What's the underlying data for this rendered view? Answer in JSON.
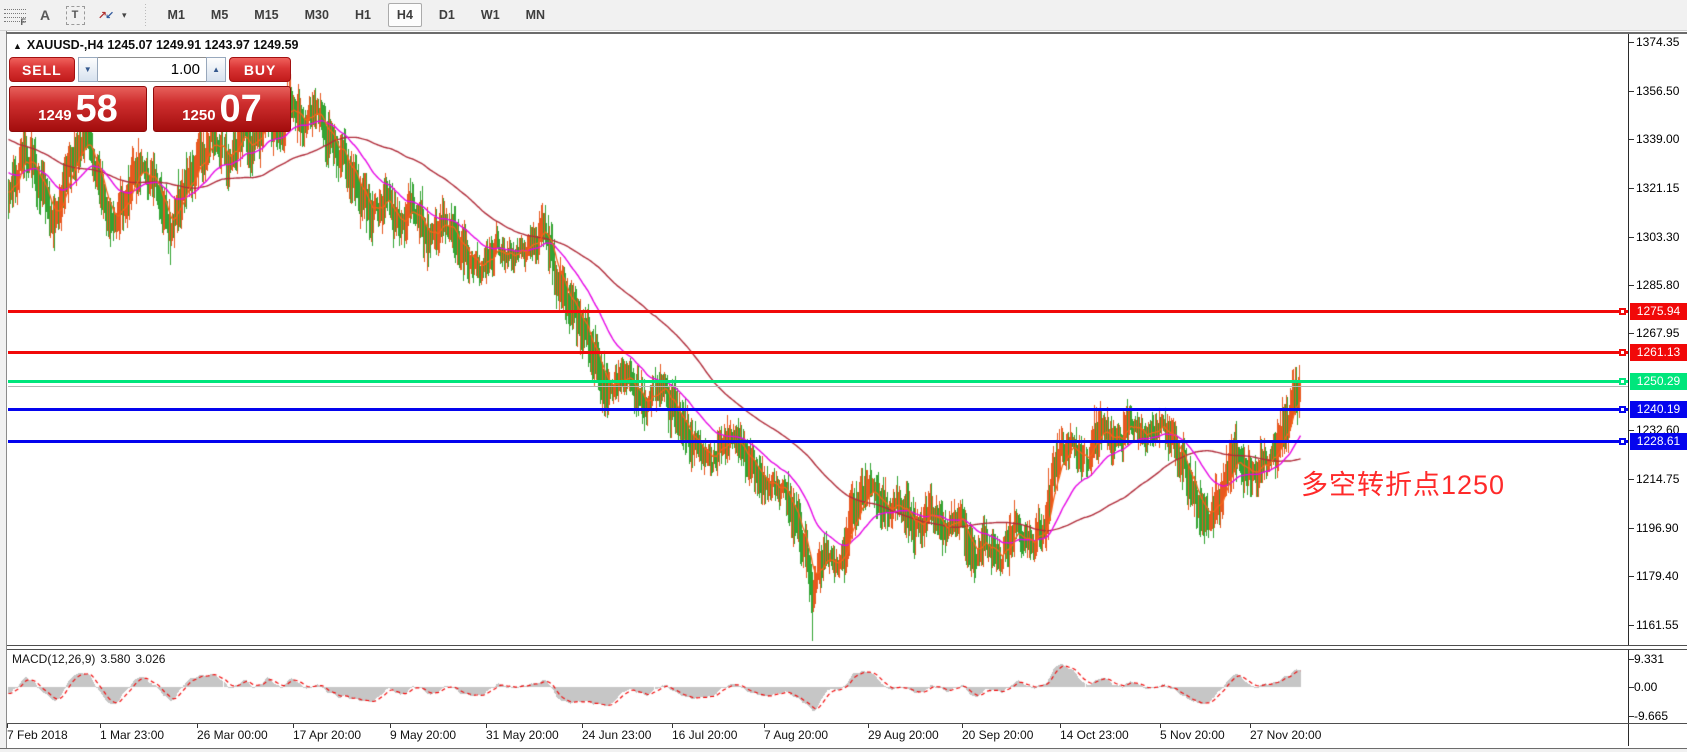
{
  "toolbar": {
    "icons": [
      {
        "name": "fibonacci-lines",
        "glyph": "F"
      },
      {
        "name": "text-label",
        "glyph": "A"
      },
      {
        "name": "text-box",
        "glyph": "T"
      },
      {
        "name": "arrow-up",
        "glyph": "↗"
      },
      {
        "name": "arrow-down",
        "glyph": "↙"
      },
      {
        "name": "dropdown",
        "glyph": "▾"
      }
    ],
    "timeframes": [
      {
        "label": "M1"
      },
      {
        "label": "M5"
      },
      {
        "label": "M15"
      },
      {
        "label": "M30"
      },
      {
        "label": "H1"
      },
      {
        "label": "H4"
      },
      {
        "label": "D1"
      },
      {
        "label": "W1"
      },
      {
        "label": "MN"
      }
    ],
    "active_timeframe": "H4"
  },
  "header": {
    "collapse_glyph": "▲",
    "symbol_line": "XAUUSD-,H4",
    "ohlc_values": "1245.07 1249.91 1243.97 1249.59"
  },
  "trade_panel": {
    "sell_label": "SELL",
    "buy_label": "BUY",
    "volume": "1.00",
    "spinner_down_glyph": "▼",
    "spinner_up_glyph": "▲",
    "sell_price_small": "1249",
    "sell_price_big": "58",
    "buy_price_small": "1250",
    "buy_price_big": "07"
  },
  "price_axis": {
    "ticks": [
      "1374.35",
      "1356.50",
      "1339.00",
      "1321.15",
      "1303.30",
      "1285.80",
      "1267.95",
      "1232.60",
      "1214.75",
      "1196.90",
      "1179.40",
      "1161.55"
    ]
  },
  "time_axis": {
    "labels": [
      "7 Feb 2018",
      "1 Mar 23:00",
      "26 Mar 00:00",
      "17 Apr 20:00",
      "9 May 20:00",
      "31 May 20:00",
      "24 Jun 23:00",
      "16 Jul 20:00",
      "7 Aug 20:00",
      "29 Aug 20:00",
      "20 Sep 20:00",
      "14 Oct 23:00",
      "5 Nov 20:00",
      "27 Nov 20:00"
    ]
  },
  "macd_panel": {
    "title": "MACD(12,26,9)",
    "main_value": "3.580",
    "signal_value": "3.026",
    "axis": [
      "9.331",
      "0.00",
      "-9.665"
    ]
  },
  "annotation": {
    "text": "多空转折点1250",
    "color": "#ff2a2a"
  },
  "chart_data": {
    "type": "candlestick",
    "symbol": "XAUUSD-",
    "timeframe": "H4",
    "ohlc_header": {
      "open": 1245.07,
      "high": 1249.91,
      "low": 1243.97,
      "close": 1249.59
    },
    "y_axis_range": [
      1155,
      1378
    ],
    "levels": [
      {
        "label": "1275.94",
        "price": 1275.94,
        "color": "#f10909",
        "style": "red"
      },
      {
        "label": "1261.13",
        "price": 1261.13,
        "color": "#f10909",
        "style": "red"
      },
      {
        "label": "1250.29",
        "price": 1250.29,
        "color": "#00e67c",
        "style": "green"
      },
      {
        "label": "1240.19",
        "price": 1240.19,
        "color": "#0404ee",
        "style": "blue"
      },
      {
        "label": "1228.61",
        "price": 1228.61,
        "color": "#0404ee",
        "style": "blue"
      }
    ],
    "current_price_line": 1249.59,
    "candle_colors": {
      "up": "#e8581f",
      "down": "#33a433"
    },
    "ma_lines": [
      {
        "name": "fast",
        "period": 13,
        "method": "ema",
        "color": "#f4661b"
      },
      {
        "name": "medium",
        "period": 60,
        "method": "ema",
        "color": "#e607e6"
      },
      {
        "name": "slow",
        "period": 160,
        "method": "sma",
        "color": "#b02c3a"
      }
    ],
    "macd": {
      "fast": 12,
      "slow": 26,
      "signal": 9,
      "histogram_color": "#c6c6c6",
      "signal_color": "#f20c0c"
    },
    "price_path": [
      [
        -0.17,
        1322
      ],
      [
        -0.12,
        1352
      ],
      [
        -0.06,
        1342
      ],
      [
        -0.02,
        1326
      ],
      [
        0.0,
        1318
      ],
      [
        0.013,
        1335
      ],
      [
        0.025,
        1322
      ],
      [
        0.036,
        1308
      ],
      [
        0.048,
        1330
      ],
      [
        0.06,
        1340
      ],
      [
        0.071,
        1322
      ],
      [
        0.08,
        1306
      ],
      [
        0.091,
        1318
      ],
      [
        0.102,
        1330
      ],
      [
        0.114,
        1322
      ],
      [
        0.125,
        1305
      ],
      [
        0.137,
        1322
      ],
      [
        0.149,
        1332
      ],
      [
        0.16,
        1340
      ],
      [
        0.17,
        1330
      ],
      [
        0.18,
        1342
      ],
      [
        0.189,
        1335
      ],
      [
        0.199,
        1348
      ],
      [
        0.209,
        1340
      ],
      [
        0.218,
        1353
      ],
      [
        0.228,
        1344
      ],
      [
        0.238,
        1350
      ],
      [
        0.249,
        1338
      ],
      [
        0.261,
        1330
      ],
      [
        0.271,
        1320
      ],
      [
        0.282,
        1310
      ],
      [
        0.292,
        1318
      ],
      [
        0.302,
        1306
      ],
      [
        0.313,
        1315
      ],
      [
        0.325,
        1302
      ],
      [
        0.338,
        1310
      ],
      [
        0.354,
        1296
      ],
      [
        0.365,
        1292
      ],
      [
        0.377,
        1300
      ],
      [
        0.39,
        1296
      ],
      [
        0.404,
        1300
      ],
      [
        0.416,
        1307
      ],
      [
        0.423,
        1288
      ],
      [
        0.431,
        1282
      ],
      [
        0.439,
        1275
      ],
      [
        0.447,
        1268
      ],
      [
        0.464,
        1246
      ],
      [
        0.478,
        1253
      ],
      [
        0.493,
        1242
      ],
      [
        0.505,
        1249
      ],
      [
        0.514,
        1241
      ],
      [
        0.528,
        1228
      ],
      [
        0.543,
        1222
      ],
      [
        0.559,
        1231
      ],
      [
        0.574,
        1221
      ],
      [
        0.584,
        1214
      ],
      [
        0.601,
        1210
      ],
      [
        0.613,
        1196
      ],
      [
        0.622,
        1174
      ],
      [
        0.632,
        1187
      ],
      [
        0.644,
        1184
      ],
      [
        0.653,
        1202
      ],
      [
        0.667,
        1213
      ],
      [
        0.679,
        1202
      ],
      [
        0.69,
        1207
      ],
      [
        0.702,
        1196
      ],
      [
        0.714,
        1204
      ],
      [
        0.725,
        1196
      ],
      [
        0.737,
        1202
      ],
      [
        0.746,
        1186
      ],
      [
        0.756,
        1192
      ],
      [
        0.768,
        1186
      ],
      [
        0.779,
        1196
      ],
      [
        0.791,
        1190
      ],
      [
        0.803,
        1198
      ],
      [
        0.81,
        1222
      ],
      [
        0.822,
        1228
      ],
      [
        0.834,
        1221
      ],
      [
        0.845,
        1235
      ],
      [
        0.857,
        1228
      ],
      [
        0.868,
        1236
      ],
      [
        0.88,
        1230
      ],
      [
        0.892,
        1235
      ],
      [
        0.903,
        1228
      ],
      [
        0.915,
        1212
      ],
      [
        0.927,
        1199
      ],
      [
        0.938,
        1210
      ],
      [
        0.95,
        1225
      ],
      [
        0.961,
        1215
      ],
      [
        0.971,
        1222
      ],
      [
        0.978,
        1222
      ],
      [
        0.986,
        1232
      ],
      [
        0.994,
        1242
      ],
      [
        1.0,
        1250.29
      ]
    ]
  }
}
